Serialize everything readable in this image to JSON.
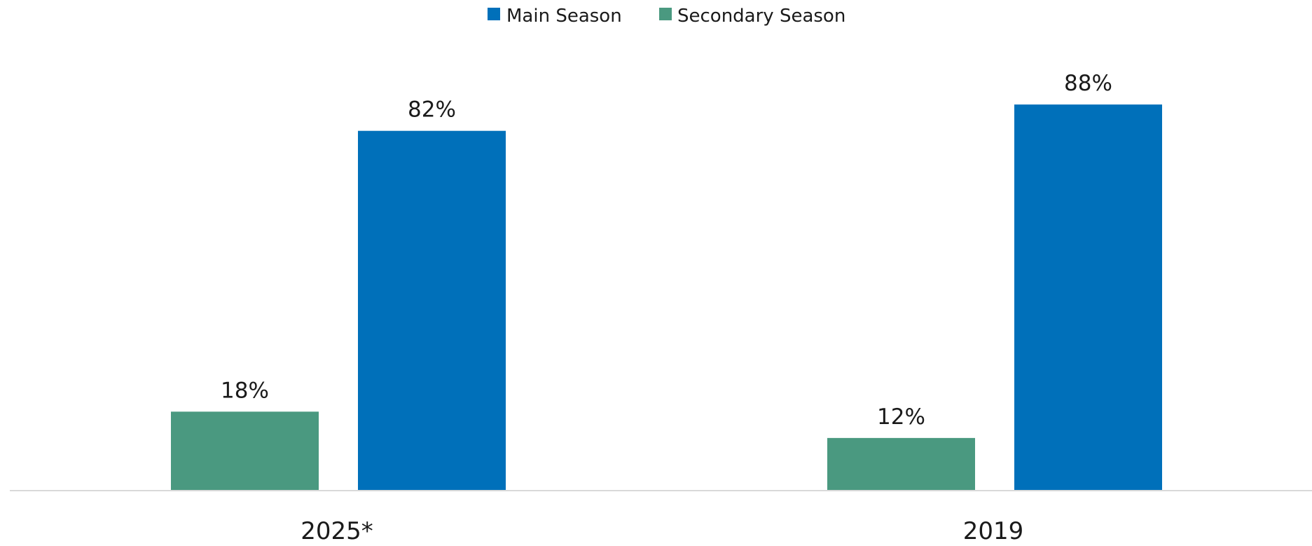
{
  "chart_data": {
    "type": "bar",
    "categories": [
      "2025*",
      "2019"
    ],
    "series": [
      {
        "name": "Secondary Season",
        "values": [
          18,
          12
        ],
        "labels": [
          "18%",
          "12%"
        ],
        "color": "#4a9980"
      },
      {
        "name": "Main Season",
        "values": [
          82,
          88
        ],
        "labels": [
          "82%",
          "88%"
        ],
        "color": "#0070ba"
      }
    ],
    "legend": {
      "position": "top-center",
      "items": [
        {
          "name": "Main Season",
          "color": "#0070ba"
        },
        {
          "name": "Secondary Season",
          "color": "#4a9980"
        }
      ]
    },
    "ylim": [
      0,
      100
    ],
    "grid": false,
    "axis_color": "#d9d9d9"
  }
}
